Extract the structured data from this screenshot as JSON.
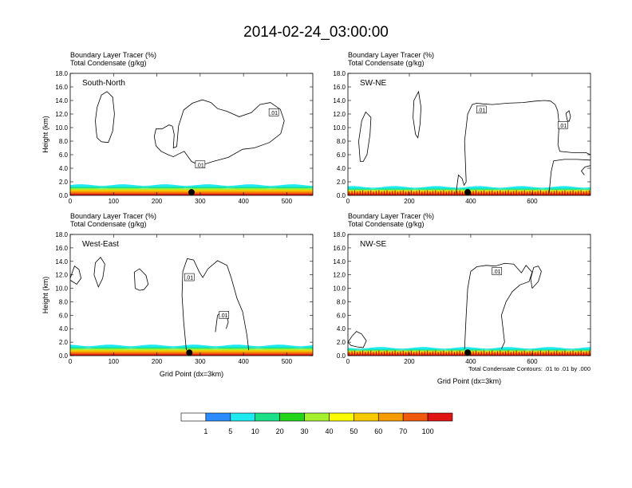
{
  "title": "2014-02-24_03:00:00",
  "chart_data": [
    {
      "type": "area",
      "panel": "South-North",
      "header_line1": "Boundary Layer Tracer    (%)",
      "header_line2": "Total Condensate    (g/kg)",
      "xlabel": "",
      "ylabel": "Height (km)",
      "xlim": [
        0,
        560
      ],
      "ylim": [
        0,
        18
      ],
      "xticks": [
        "0",
        "100",
        "200",
        "300",
        "400",
        "500"
      ],
      "yticks": [
        "0.0",
        "2.0",
        "4.0",
        "6.0",
        "8.0",
        "10.0",
        "12.0",
        "14.0",
        "16.0",
        "18.0"
      ],
      "contour_label": ".01",
      "contour_labels_at": [
        [
          470,
          12.2
        ],
        [
          300,
          4.5
        ]
      ],
      "marker_x": 280,
      "boundary_layer_top_km": 1.6,
      "contours": [
        [
          [
            60,
            9.5
          ],
          [
            58,
            11
          ],
          [
            62,
            13
          ],
          [
            72,
            14.8
          ],
          [
            85,
            15.3
          ],
          [
            98,
            14.5
          ],
          [
            102,
            12
          ],
          [
            98,
            9.5
          ],
          [
            88,
            7.8
          ],
          [
            72,
            7.9
          ],
          [
            62,
            8.5
          ],
          [
            60,
            9.5
          ]
        ],
        [
          [
            212,
            9.8
          ],
          [
            228,
            10.4
          ],
          [
            236,
            10.2
          ],
          [
            240,
            9
          ],
          [
            238,
            7
          ],
          [
            246,
            7.2
          ],
          [
            250,
            10.2
          ],
          [
            262,
            12.6
          ],
          [
            282,
            13.6
          ],
          [
            305,
            14.1
          ],
          [
            325,
            13.7
          ],
          [
            340,
            12.8
          ],
          [
            362,
            12.4
          ],
          [
            390,
            11.6
          ],
          [
            418,
            12.2
          ],
          [
            438,
            13.4
          ],
          [
            462,
            13.7
          ],
          [
            485,
            12.7
          ],
          [
            494,
            11
          ],
          [
            486,
            9.1
          ],
          [
            460,
            7.8
          ],
          [
            425,
            7
          ],
          [
            398,
            6.8
          ],
          [
            365,
            5.6
          ],
          [
            330,
            5
          ],
          [
            300,
            4.4
          ],
          [
            280,
            5
          ],
          [
            263,
            6.5
          ],
          [
            250,
            6.1
          ],
          [
            238,
            5.7
          ],
          [
            226,
            6
          ],
          [
            210,
            6.5
          ],
          [
            198,
            7.3
          ],
          [
            194,
            8.7
          ],
          [
            198,
            9.8
          ],
          [
            212,
            9.8
          ]
        ]
      ]
    },
    {
      "type": "area",
      "panel": "SW-NE",
      "header_line1": "Boundary Layer Tracer    (%)",
      "header_line2": "Total Condensate    (g/kg)",
      "xlabel": "",
      "ylabel": "",
      "xlim": [
        0,
        790
      ],
      "ylim": [
        0,
        18
      ],
      "xticks": [
        "0",
        "200",
        "400",
        "600"
      ],
      "yticks": [
        "0.0",
        "2.0",
        "4.0",
        "6.0",
        "8.0",
        "10.0",
        "12.0",
        "14.0",
        "16.0",
        "18.0"
      ],
      "contour_label": ".01",
      "contour_labels_at": [
        [
          435,
          12.6
        ],
        [
          700,
          10.3
        ]
      ],
      "marker_x": 390,
      "boundary_layer_top_km": 1.3,
      "contours": [
        [
          [
            40,
            5
          ],
          [
            35,
            8
          ],
          [
            45,
            11
          ],
          [
            58,
            12.3
          ],
          [
            75,
            11.5
          ],
          [
            72,
            9
          ],
          [
            62,
            6
          ],
          [
            50,
            5
          ],
          [
            40,
            5
          ]
        ],
        [
          [
            220,
            9
          ],
          [
            212,
            11.5
          ],
          [
            215,
            14
          ],
          [
            230,
            15.3
          ],
          [
            238,
            13
          ],
          [
            235,
            10.5
          ],
          [
            228,
            8.5
          ],
          [
            220,
            9
          ]
        ],
        [
          [
            385,
            2
          ],
          [
            380,
            8
          ],
          [
            390,
            12
          ],
          [
            405,
            13.4
          ],
          [
            420,
            13.6
          ],
          [
            440,
            13.5
          ],
          [
            470,
            13.4
          ],
          [
            520,
            13.6
          ],
          [
            570,
            13.7
          ],
          [
            610,
            13.9
          ],
          [
            640,
            14
          ],
          [
            660,
            13.9
          ],
          [
            675,
            13.4
          ],
          [
            683,
            12.5
          ],
          [
            688,
            10.5
          ],
          [
            684,
            7.5
          ],
          [
            690,
            6.5
          ],
          [
            730,
            6.3
          ],
          [
            775,
            6.3
          ],
          [
            790,
            6
          ]
        ],
        [
          [
            655,
            0.3
          ],
          [
            662,
            3.5
          ],
          [
            670,
            5.1
          ],
          [
            705,
            5.3
          ],
          [
            745,
            5.3
          ],
          [
            790,
            5.2
          ]
        ],
        [
          [
            770,
            3
          ],
          [
            760,
            3.6
          ],
          [
            772,
            4.2
          ],
          [
            790,
            4.4
          ]
        ],
        [
          [
            352,
            0.3
          ],
          [
            360,
            3
          ],
          [
            372,
            2.5
          ],
          [
            378,
            1.5
          ],
          [
            385,
            2
          ]
        ],
        [
          [
            715,
            11
          ],
          [
            710,
            12.1
          ],
          [
            720,
            12.5
          ],
          [
            725,
            11.6
          ],
          [
            720,
            10.9
          ],
          [
            715,
            11
          ]
        ]
      ]
    },
    {
      "type": "area",
      "panel": "West-East",
      "header_line1": "Boundary Layer Tracer    (%)",
      "header_line2": "Total Condensate    (g/kg)",
      "xlabel": "Grid Point (dx=3km)",
      "ylabel": "Height (km)",
      "xlim": [
        0,
        560
      ],
      "ylim": [
        0,
        18
      ],
      "xticks": [
        "0",
        "100",
        "200",
        "300",
        "400",
        "500"
      ],
      "yticks": [
        "0.0",
        "2.0",
        "4.0",
        "6.0",
        "8.0",
        "10.0",
        "12.0",
        "14.0",
        "16.0",
        "18.0"
      ],
      "contour_label": ".01",
      "contour_labels_at": [
        [
          275,
          11.6
        ],
        [
          355,
          6
        ]
      ],
      "marker_x": 275,
      "boundary_layer_top_km": 1.6,
      "contours": [
        [
          [
            0,
            11.5
          ],
          [
            10,
            13.3
          ],
          [
            20,
            12.8
          ],
          [
            25,
            11.5
          ],
          [
            15,
            10.6
          ],
          [
            0,
            11.2
          ]
        ],
        [
          [
            55,
            12
          ],
          [
            58,
            13.8
          ],
          [
            70,
            14.6
          ],
          [
            80,
            13.6
          ],
          [
            75,
            11.5
          ],
          [
            65,
            10.2
          ],
          [
            55,
            12
          ]
        ],
        [
          [
            150,
            10
          ],
          [
            148,
            12.4
          ],
          [
            160,
            12.9
          ],
          [
            175,
            11.9
          ],
          [
            180,
            10.6
          ],
          [
            170,
            9.8
          ],
          [
            160,
            9.7
          ],
          [
            150,
            10
          ]
        ],
        [
          [
            268,
            0.8
          ],
          [
            262,
            5
          ],
          [
            258,
            9
          ],
          [
            260,
            12.5
          ],
          [
            270,
            14.4
          ],
          [
            285,
            14.2
          ],
          [
            298,
            12.4
          ],
          [
            306,
            11.6
          ],
          [
            318,
            12.9
          ],
          [
            340,
            14.1
          ],
          [
            362,
            13.4
          ],
          [
            372,
            11.5
          ],
          [
            385,
            8.5
          ],
          [
            398,
            6.5
          ],
          [
            408,
            3
          ],
          [
            412,
            0.8
          ]
        ],
        [
          [
            335,
            3.5
          ],
          [
            340,
            6
          ],
          [
            350,
            6.5
          ],
          [
            360,
            6.2
          ],
          [
            365,
            5
          ],
          [
            360,
            4
          ]
        ]
      ]
    },
    {
      "type": "area",
      "panel": "NW-SE",
      "header_line1": "Boundary Layer Tracer    (%)",
      "header_line2": "Total Condensate    (g/kg)",
      "xlabel": "Grid Point (dx=3km)",
      "ylabel": "",
      "xlim": [
        0,
        790
      ],
      "ylim": [
        0,
        18
      ],
      "xticks": [
        "0",
        "200",
        "400",
        "600"
      ],
      "yticks": [
        "0.0",
        "2.0",
        "4.0",
        "6.0",
        "8.0",
        "10.0",
        "12.0",
        "14.0",
        "16.0",
        "18.0"
      ],
      "contour_label": ".01",
      "contour_labels_at": [
        [
          485,
          12.5
        ]
      ],
      "marker_x": 390,
      "boundary_layer_top_km": 1.2,
      "note": "Total Condensate Contours: .01 to .01 by .000",
      "contours": [
        [
          [
            380,
            1
          ],
          [
            385,
            6
          ],
          [
            390,
            10
          ],
          [
            400,
            12.5
          ],
          [
            420,
            13.2
          ],
          [
            450,
            13.4
          ],
          [
            480,
            13.3
          ],
          [
            510,
            13.7
          ],
          [
            540,
            13.6
          ],
          [
            565,
            12.3
          ],
          [
            580,
            13.4
          ],
          [
            600,
            12.4
          ],
          [
            590,
            11
          ],
          [
            560,
            10.5
          ],
          [
            535,
            9.5
          ],
          [
            515,
            8
          ],
          [
            500,
            6
          ],
          [
            510,
            2
          ],
          [
            500,
            1
          ]
        ],
        [
          [
            0,
            2
          ],
          [
            15,
            3
          ],
          [
            28,
            3.6
          ],
          [
            45,
            3.2
          ],
          [
            60,
            2.2
          ],
          [
            50,
            1.2
          ],
          [
            30,
            1.3
          ],
          [
            10,
            1.5
          ],
          [
            0,
            2
          ]
        ],
        [
          [
            600,
            10
          ],
          [
            595,
            11.4
          ],
          [
            605,
            13.1
          ],
          [
            620,
            13.3
          ],
          [
            630,
            12.5
          ],
          [
            620,
            11
          ],
          [
            600,
            10
          ]
        ]
      ]
    }
  ],
  "colorbar": {
    "labels": [
      "1",
      "5",
      "10",
      "20",
      "30",
      "40",
      "50",
      "60",
      "70",
      "100"
    ],
    "colors": [
      "#ffffff",
      "#2b8cff",
      "#1ce9f0",
      "#1ce087",
      "#22d51b",
      "#a5f02e",
      "#fafa00",
      "#f5c800",
      "#f59c00",
      "#ef5a0f",
      "#e11414"
    ]
  }
}
